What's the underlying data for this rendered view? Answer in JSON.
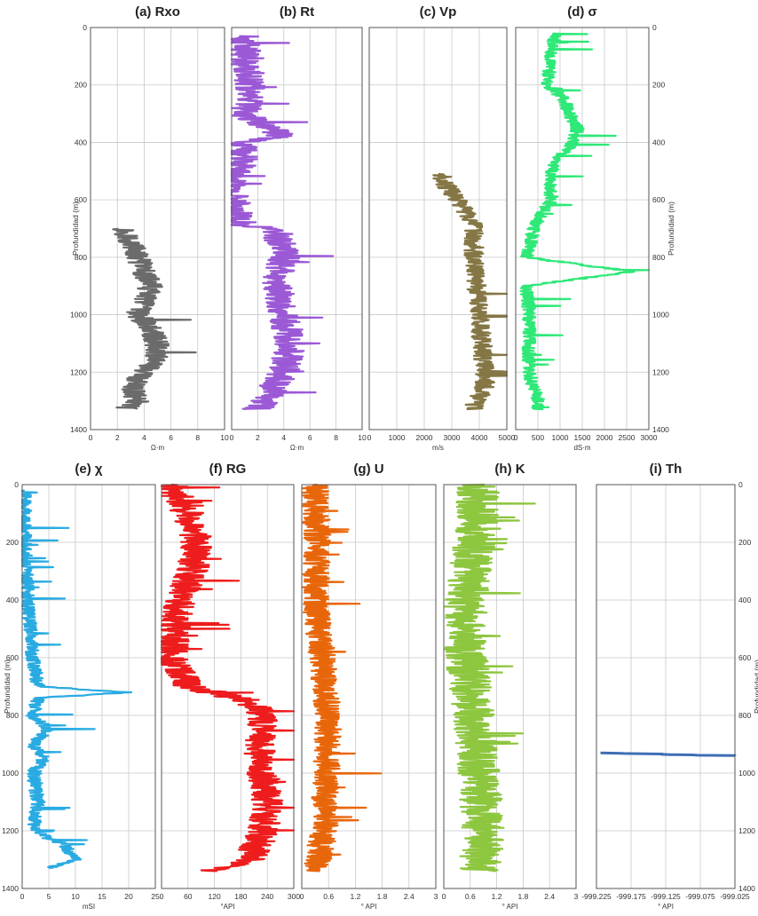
{
  "depth_axis": {
    "label": "Profundidad (m)",
    "range": [
      0,
      1400
    ],
    "ticks": [
      "0",
      "200",
      "400",
      "600",
      "800",
      "1000",
      "1200",
      "1400"
    ]
  },
  "chart_data": [
    {
      "id": "rxo",
      "type": "line",
      "title": "(a) Rxo",
      "xlabel": "Ω·m",
      "xlim": [
        0,
        10
      ],
      "xticks": [
        "0",
        "2",
        "4",
        "6",
        "8",
        "10"
      ],
      "color": "#6b6b6b",
      "series": [
        {
          "depth": [
            700,
            750,
            800,
            850,
            900,
            950,
            1000,
            1050,
            1100,
            1150,
            1200,
            1250,
            1300,
            1330
          ],
          "values": [
            2.5,
            3.0,
            3.5,
            4.0,
            4.5,
            4.0,
            3.5,
            4.5,
            5.0,
            5.0,
            4.0,
            3.0,
            3.5,
            2.5
          ]
        }
      ]
    },
    {
      "id": "rt",
      "type": "line",
      "title": "(b) Rt",
      "xlabel": "Ω·m",
      "xlim": [
        0,
        10
      ],
      "xticks": [
        "0",
        "2",
        "4",
        "6",
        "8",
        "10"
      ],
      "color": "#9b59d6",
      "series": [
        {
          "depth": [
            30,
            100,
            200,
            300,
            380,
            400,
            460,
            520,
            690,
            700,
            800,
            900,
            1000,
            1100,
            1200,
            1300,
            1330
          ],
          "values": [
            1.0,
            1.0,
            1.5,
            1.0,
            4.0,
            1.0,
            1.0,
            0.0,
            0.5,
            3.5,
            4.0,
            3.5,
            4.0,
            4.5,
            4.0,
            2.5,
            2.0
          ]
        }
      ]
    },
    {
      "id": "vp",
      "type": "line",
      "title": "(c) Vp",
      "xlabel": "m/s",
      "xlim": [
        0,
        5000
      ],
      "xticks": [
        "0",
        "1000",
        "2000",
        "3000",
        "4000",
        "5000"
      ],
      "color": "#857745",
      "series": [
        {
          "depth": [
            510,
            550,
            600,
            650,
            700,
            800,
            900,
            1000,
            1100,
            1200,
            1250,
            1300,
            1330
          ],
          "values": [
            2600,
            2800,
            3200,
            3600,
            3800,
            3800,
            3900,
            4000,
            4100,
            4200,
            4200,
            3900,
            3800
          ]
        }
      ]
    },
    {
      "id": "sigma",
      "type": "line",
      "title": "(d) σ",
      "xlabel": "dS·m",
      "xlim": [
        0,
        3000
      ],
      "xticks": [
        "0",
        "500",
        "1000",
        "1500",
        "2000",
        "2500",
        "3000"
      ],
      "color": "#2ee878",
      "series": [
        {
          "depth": [
            20,
            100,
            200,
            250,
            300,
            350,
            400,
            450,
            500,
            600,
            700,
            800,
            850,
            900,
            1000,
            1100,
            1200,
            1300,
            1330
          ],
          "values": [
            900,
            800,
            700,
            1100,
            1200,
            1400,
            1300,
            1000,
            800,
            800,
            400,
            250,
            2600,
            250,
            300,
            300,
            300,
            500,
            500
          ]
        }
      ]
    },
    {
      "id": "chi",
      "type": "line",
      "title": "(e) χ",
      "xlabel": "mSI",
      "xlim": [
        0,
        25
      ],
      "xticks": [
        "0",
        "5",
        "10",
        "15",
        "20",
        "25"
      ],
      "color": "#29abe2",
      "series": [
        {
          "depth": [
            20,
            200,
            400,
            500,
            600,
            700,
            720,
            740,
            800,
            850,
            900,
            950,
            1000,
            1100,
            1200,
            1250,
            1300,
            1330
          ],
          "values": [
            0.5,
            0.5,
            1.0,
            1.5,
            2.0,
            3.0,
            20.0,
            3.0,
            2.0,
            5.0,
            2.0,
            4.0,
            2.0,
            3.0,
            2.0,
            8.0,
            10.0,
            5.0
          ]
        }
      ]
    },
    {
      "id": "rg",
      "type": "line",
      "title": "(f) RG",
      "xlabel": "°API",
      "xlim": [
        0,
        300
      ],
      "xticks": [
        "0",
        "60",
        "120",
        "180",
        "240",
        "300"
      ],
      "color": "#ee1c1c",
      "series": [
        {
          "depth": [
            0,
            100,
            200,
            300,
            400,
            500,
            600,
            700,
            750,
            800,
            900,
            1000,
            1100,
            1200,
            1300,
            1340
          ],
          "values": [
            20,
            60,
            80,
            70,
            40,
            30,
            20,
            60,
            200,
            230,
            220,
            230,
            240,
            230,
            200,
            120
          ]
        }
      ]
    },
    {
      "id": "u",
      "type": "line",
      "title": "(g) U",
      "xlabel": "° API",
      "xlim": [
        0,
        3
      ],
      "xticks": [
        "0",
        "0.6",
        "1.2",
        "1.8",
        "2.4",
        "3"
      ],
      "color": "#e8660a",
      "series": [
        {
          "depth": [
            0,
            200,
            400,
            600,
            800,
            1000,
            1200,
            1340
          ],
          "values": [
            0.3,
            0.35,
            0.3,
            0.45,
            0.6,
            0.55,
            0.5,
            0.3
          ]
        }
      ]
    },
    {
      "id": "k",
      "type": "line",
      "title": "(h) K",
      "xlabel": "° API",
      "xlim": [
        0,
        3
      ],
      "xticks": [
        "0",
        "0.6",
        "1.2",
        "1.8",
        "2.4",
        "3"
      ],
      "color": "#8dc63f",
      "series": [
        {
          "depth": [
            0,
            200,
            400,
            600,
            800,
            1000,
            1200,
            1340
          ],
          "values": [
            0.8,
            0.7,
            0.5,
            0.5,
            0.7,
            0.8,
            0.9,
            0.8
          ]
        }
      ]
    },
    {
      "id": "th",
      "type": "line",
      "title": "(i) Th",
      "xlabel": "° API",
      "xlim": [
        -999.25,
        -999.0
      ],
      "xticks": [
        "-999.225",
        "-999.175",
        "-999.125",
        "-999.075",
        "-999.025"
      ],
      "color": "#3d6eb4",
      "series": [
        {
          "depth": [
            930,
            935,
            940
          ],
          "values": [
            -999.25,
            -999.125,
            -999.0
          ]
        }
      ]
    }
  ]
}
